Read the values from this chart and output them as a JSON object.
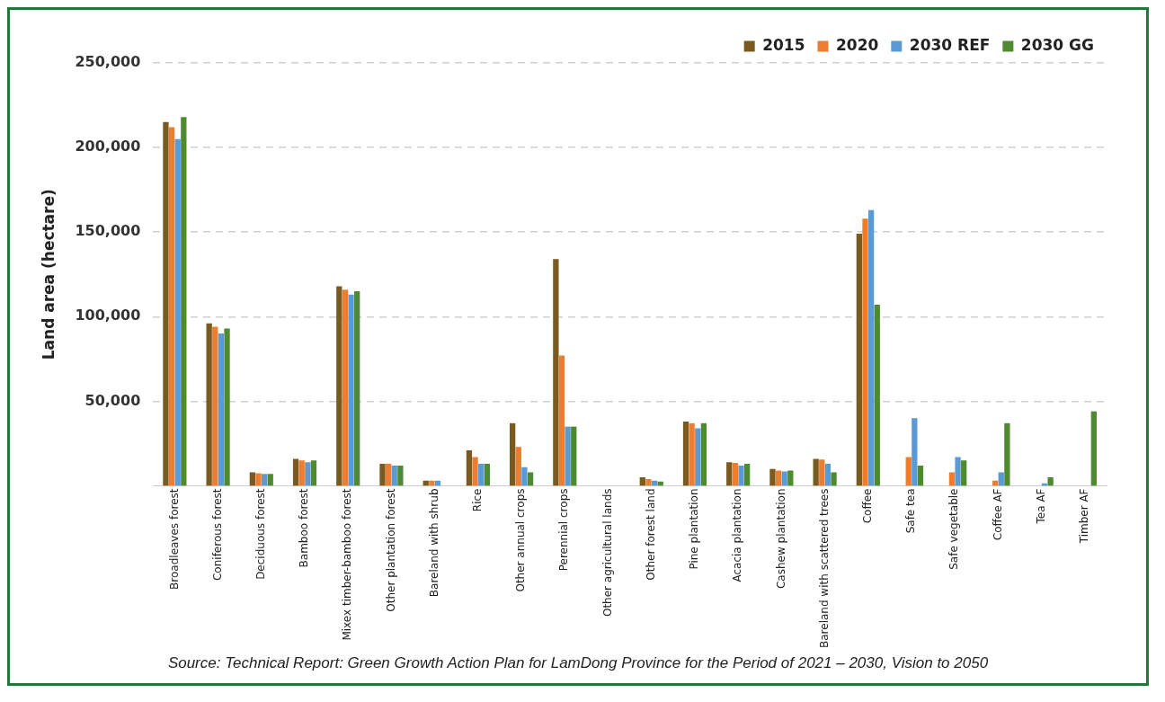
{
  "chart_data": {
    "type": "bar",
    "ylabel": "Land area (hectare)",
    "categories": [
      "Broadleaves forest",
      "Coniferous forest",
      "Deciduous forest",
      "Bamboo forest",
      "Mixex timber-bamboo forest",
      "Other plantation forest",
      "Bareland with shrub",
      "Rice",
      "Other annual crops",
      "Perennial crops",
      "Other agricultural lands",
      "Other forest land",
      "Pine plantation",
      "Acacia plantation",
      "Cashew plantation",
      "Bareland with scattered trees",
      "Coffee",
      "Safe tea",
      "Safe vegetable",
      "Coffee AF",
      "Tea AF",
      "Timber AF"
    ],
    "series": [
      {
        "name": "2015",
        "color": "#7a5a1e",
        "values": [
          215000,
          96000,
          8000,
          16000,
          118000,
          13000,
          3000,
          21000,
          37000,
          134000,
          null,
          5000,
          38000,
          14000,
          10000,
          16000,
          149000,
          null,
          null,
          null,
          null,
          null
        ]
      },
      {
        "name": "2020",
        "color": "#ed7d31",
        "values": [
          212000,
          94000,
          7500,
          15000,
          116000,
          13000,
          3000,
          17000,
          23000,
          77000,
          null,
          4000,
          37000,
          13500,
          9000,
          15500,
          158000,
          17000,
          8000,
          3000,
          null,
          null
        ]
      },
      {
        "name": "2030 REF",
        "color": "#5b9bd5",
        "values": [
          205000,
          90000,
          7000,
          14000,
          113000,
          12000,
          3000,
          13000,
          11000,
          35000,
          null,
          3000,
          34000,
          12000,
          8500,
          13000,
          163000,
          40000,
          17000,
          8000,
          1500,
          null
        ]
      },
      {
        "name": "2030 GG",
        "color": "#4e8b2f",
        "values": [
          218000,
          93000,
          7000,
          15000,
          115000,
          12000,
          null,
          13000,
          8000,
          35000,
          null,
          2500,
          37000,
          13000,
          9000,
          8000,
          107000,
          12000,
          15000,
          37000,
          5000,
          44000
        ]
      }
    ],
    "ylim": [
      0,
      250000
    ],
    "yticks": [
      {
        "value": 0,
        "label": null
      },
      {
        "value": 50000,
        "label": "50,000"
      },
      {
        "value": 100000,
        "label": "100,000"
      },
      {
        "value": 150000,
        "label": "150,000"
      },
      {
        "value": 200000,
        "label": "200,000"
      },
      {
        "value": 250000,
        "label": "250,000"
      }
    ],
    "grid": "y",
    "legend": "top right",
    "annotations": [
      "Source: Technical Report: Green Growth Action Plan for LamDong Province for the Period of 2021 – 2030, Vision to 2050"
    ]
  }
}
